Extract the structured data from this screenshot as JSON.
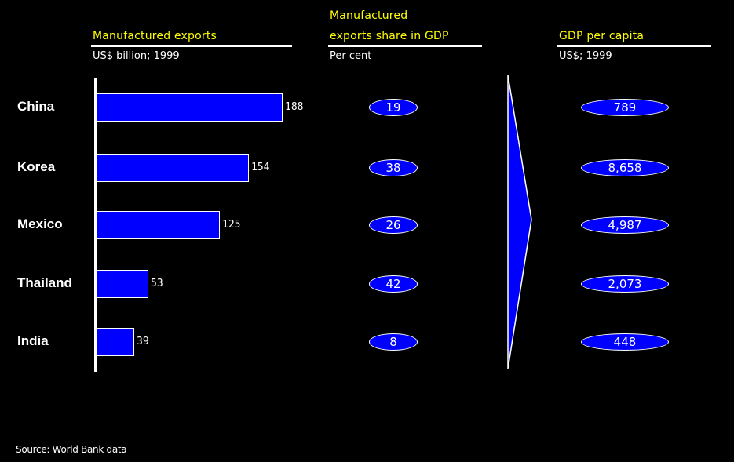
{
  "chart_data": {
    "type": "bar",
    "categories": [
      "China",
      "Korea",
      "Mexico",
      "Thailand",
      "India"
    ],
    "series": [
      {
        "name": "Manufactured exports",
        "unit": "US$ billion; 1999",
        "values": [
          188,
          154,
          125,
          53,
          39
        ]
      }
    ],
    "columns": [
      {
        "title": "Manufactured exports share in GDP",
        "unit": "Per cent",
        "values": [
          "19",
          "38",
          "26",
          "42",
          "8"
        ]
      },
      {
        "title": "GDP per capita",
        "unit": "US$; 1999",
        "values": [
          "789",
          "8,658",
          "4,987",
          "2,073",
          "448"
        ]
      }
    ],
    "xlim": [
      0,
      188
    ],
    "grid": false,
    "legend": "none"
  },
  "headers": {
    "exports_title": "Manufactured exports",
    "exports_unit": "US$ billion; 1999",
    "share_title_line1": "Manufactured",
    "share_title_line2": "exports share in GDP",
    "share_unit": "Per cent",
    "gdp_title": "GDP per capita",
    "gdp_unit": "US$; 1999"
  },
  "source": "Source: World Bank data",
  "colors": {
    "background": "#000000",
    "bar": "#0000ff",
    "header_text": "#ffff00",
    "text": "#ffffff"
  }
}
